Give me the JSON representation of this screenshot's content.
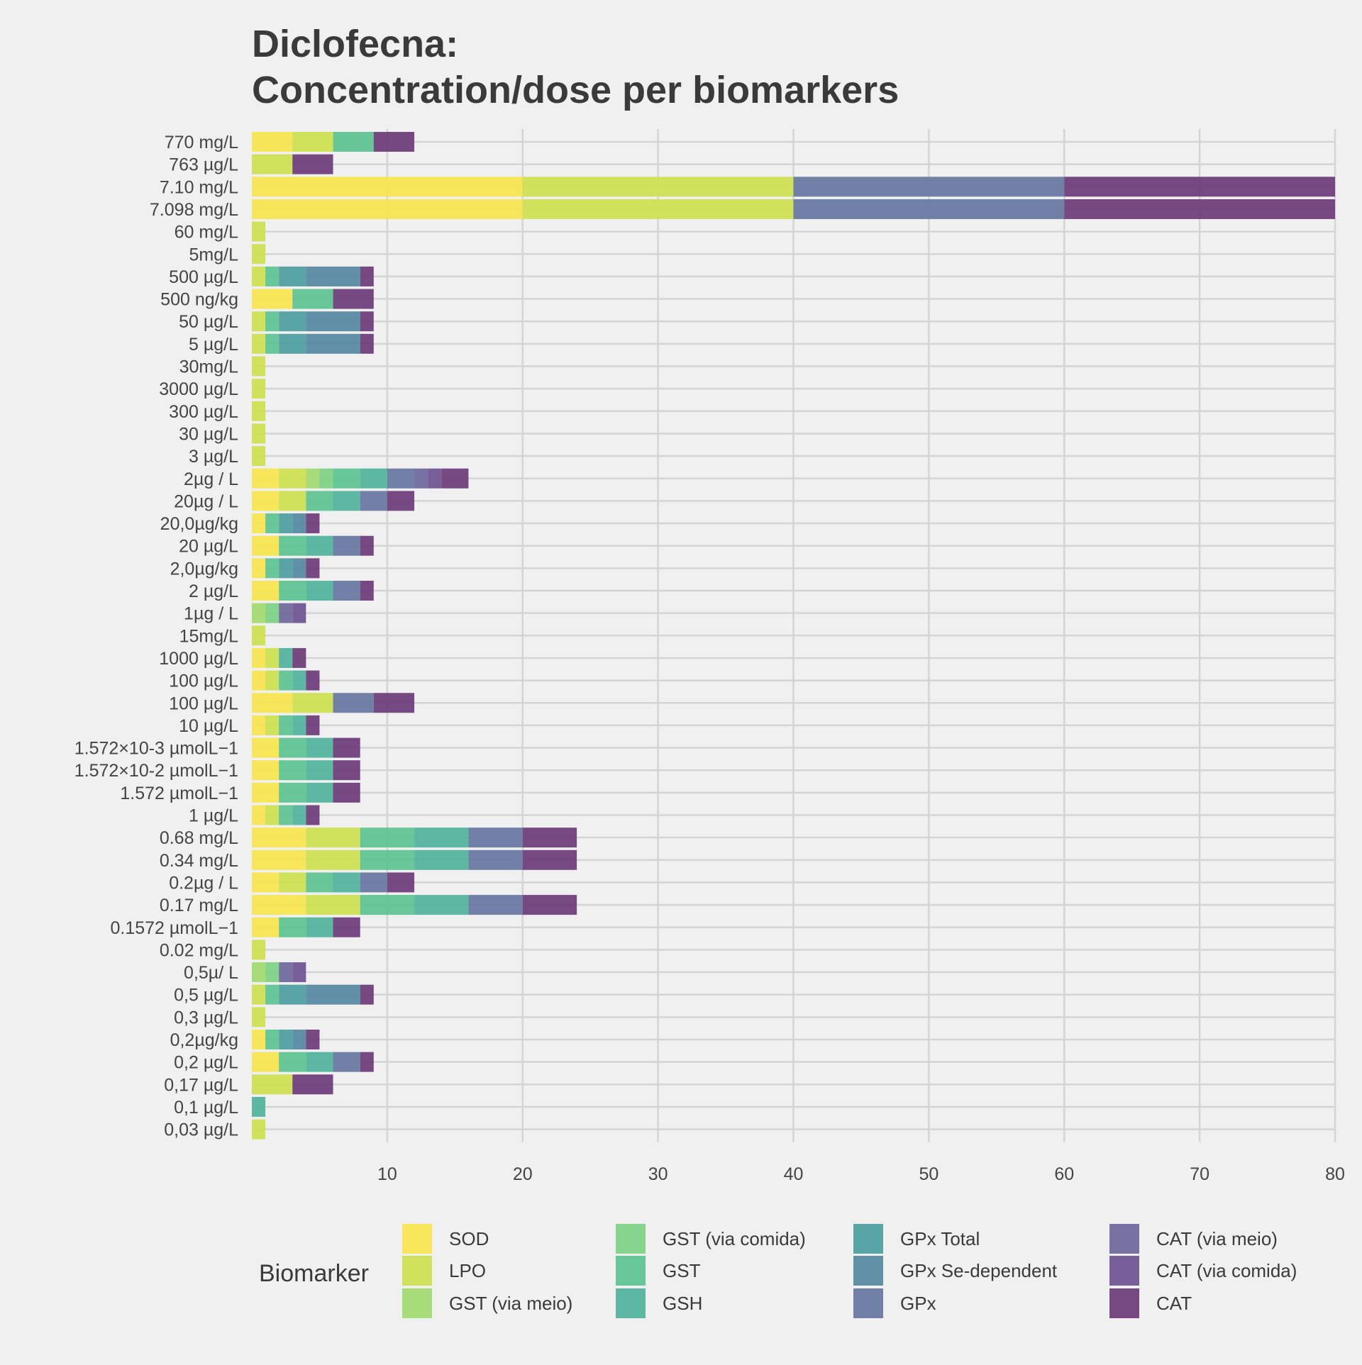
{
  "chart_data": {
    "type": "bar",
    "orientation": "horizontal",
    "stacked": true,
    "title": [
      "Diclofecna:",
      "Concentration/dose per biomarkers"
    ],
    "xlabel": "",
    "ylabel": "",
    "xlim": [
      0,
      80
    ],
    "xticks": [
      10,
      20,
      30,
      40,
      50,
      60,
      70,
      80
    ],
    "grid": true,
    "legend": {
      "title": "Biomarker",
      "position": "bottom"
    },
    "series": [
      {
        "name": "SOD",
        "color": "#f7e44d"
      },
      {
        "name": "LPO",
        "color": "#cddf4f"
      },
      {
        "name": "GST (via meio)",
        "color": "#a2da6e"
      },
      {
        "name": "GST (via comida)",
        "color": "#7dd083"
      },
      {
        "name": "GST",
        "color": "#5bc390"
      },
      {
        "name": "GSH",
        "color": "#4fb39c"
      },
      {
        "name": "GPx Total",
        "color": "#4c9e9f"
      },
      {
        "name": "GPx Se-dependent",
        "color": "#5388a0"
      },
      {
        "name": "GPx",
        "color": "#6676a1"
      },
      {
        "name": "CAT (via meio)",
        "color": "#6e679c"
      },
      {
        "name": "CAT (via comida)",
        "color": "#6f5292"
      },
      {
        "name": "CAT",
        "color": "#6d3b78"
      }
    ],
    "categories": [
      "770 mg/L",
      "763 µg/L",
      "7.10 mg/L",
      "7.098 mg/L",
      "60 mg/L",
      "5mg/L",
      "500 µg/L",
      "500 ng/kg",
      "50 µg/L",
      "5 µg/L",
      "30mg/L",
      "3000 µg/L",
      "300 µg/L",
      "30 µg/L",
      "3 µg/L",
      "2µg / L",
      "20µg / L",
      "20,0µg/kg",
      "20 µg/L",
      "2,0µg/kg",
      "2 µg/L",
      "1µg / L",
      "15mg/L",
      "1000 µg/L",
      "100 µg/L",
      "100 µg/L",
      "10 µg/L",
      "1.572×10-3 µmolL−1",
      "1.572×10-2 µmolL−1",
      "1.572 µmolL−1",
      "1 µg/L",
      "0.68 mg/L",
      "0.34 mg/L",
      "0.2µg / L",
      "0.17 mg/L",
      "0.1572 µmolL−1",
      "0.02 mg/L",
      "0,5µ/ L",
      "0,5 µg/L",
      "0,3 µg/L",
      "0,2µg/kg",
      "0,2 µg/L",
      "0,17 µg/L",
      "0,1 µg/L",
      "0,03 µg/L"
    ],
    "segments": [
      [
        [
          "SOD",
          3
        ],
        [
          "LPO",
          3
        ],
        [
          "GST",
          3
        ],
        [
          "CAT",
          3
        ]
      ],
      [
        [
          "LPO",
          3
        ],
        [
          "CAT",
          3
        ]
      ],
      [
        [
          "SOD",
          20
        ],
        [
          "LPO",
          20
        ],
        [
          "GPx",
          20
        ],
        [
          "CAT",
          20
        ]
      ],
      [
        [
          "SOD",
          20
        ],
        [
          "LPO",
          20
        ],
        [
          "GPx",
          20
        ],
        [
          "CAT",
          20
        ]
      ],
      [
        [
          "LPO",
          1
        ]
      ],
      [
        [
          "LPO",
          1
        ]
      ],
      [
        [
          "LPO",
          1
        ],
        [
          "GST",
          1
        ],
        [
          "GPx Total",
          2
        ],
        [
          "GPx Se-dependent",
          4
        ],
        [
          "CAT",
          1
        ]
      ],
      [
        [
          "SOD",
          3
        ],
        [
          "GST",
          3
        ],
        [
          "CAT",
          3
        ]
      ],
      [
        [
          "LPO",
          1
        ],
        [
          "GST",
          1
        ],
        [
          "GPx Total",
          2
        ],
        [
          "GPx Se-dependent",
          4
        ],
        [
          "CAT",
          1
        ]
      ],
      [
        [
          "LPO",
          1
        ],
        [
          "GST",
          1
        ],
        [
          "GPx Total",
          2
        ],
        [
          "GPx Se-dependent",
          4
        ],
        [
          "CAT",
          1
        ]
      ],
      [
        [
          "LPO",
          1
        ]
      ],
      [
        [
          "LPO",
          1
        ]
      ],
      [
        [
          "LPO",
          1
        ]
      ],
      [
        [
          "LPO",
          1
        ]
      ],
      [
        [
          "LPO",
          1
        ]
      ],
      [
        [
          "SOD",
          2
        ],
        [
          "LPO",
          2
        ],
        [
          "GST (via meio)",
          1
        ],
        [
          "GST (via comida)",
          1
        ],
        [
          "GST",
          2
        ],
        [
          "GSH",
          2
        ],
        [
          "GPx",
          2
        ],
        [
          "CAT (via meio)",
          1
        ],
        [
          "CAT (via comida)",
          1
        ],
        [
          "CAT",
          2
        ]
      ],
      [
        [
          "SOD",
          2
        ],
        [
          "LPO",
          2
        ],
        [
          "GST",
          2
        ],
        [
          "GSH",
          2
        ],
        [
          "GPx",
          2
        ],
        [
          "CAT",
          2
        ]
      ],
      [
        [
          "SOD",
          1
        ],
        [
          "GST",
          1
        ],
        [
          "GPx Total",
          1
        ],
        [
          "GPx Se-dependent",
          1
        ],
        [
          "CAT",
          1
        ]
      ],
      [
        [
          "SOD",
          2
        ],
        [
          "GST",
          2
        ],
        [
          "GSH",
          2
        ],
        [
          "GPx",
          2
        ],
        [
          "CAT",
          1
        ]
      ],
      [
        [
          "SOD",
          1
        ],
        [
          "GST",
          1
        ],
        [
          "GPx Total",
          1
        ],
        [
          "GPx Se-dependent",
          1
        ],
        [
          "CAT",
          1
        ]
      ],
      [
        [
          "SOD",
          2
        ],
        [
          "GST",
          2
        ],
        [
          "GSH",
          2
        ],
        [
          "GPx",
          2
        ],
        [
          "CAT",
          1
        ]
      ],
      [
        [
          "GST (via meio)",
          1
        ],
        [
          "GST (via comida)",
          1
        ],
        [
          "CAT (via meio)",
          1
        ],
        [
          "CAT (via comida)",
          1
        ]
      ],
      [
        [
          "LPO",
          1
        ]
      ],
      [
        [
          "SOD",
          1
        ],
        [
          "LPO",
          1
        ],
        [
          "GSH",
          1
        ],
        [
          "CAT",
          1
        ]
      ],
      [
        [
          "SOD",
          1
        ],
        [
          "LPO",
          1
        ],
        [
          "GST",
          1
        ],
        [
          "GSH",
          1
        ],
        [
          "CAT",
          1
        ]
      ],
      [
        [
          "SOD",
          3
        ],
        [
          "LPO",
          3
        ],
        [
          "GPx",
          3
        ],
        [
          "CAT",
          3
        ]
      ],
      [
        [
          "SOD",
          1
        ],
        [
          "LPO",
          1
        ],
        [
          "GST",
          1
        ],
        [
          "GSH",
          1
        ],
        [
          "CAT",
          1
        ]
      ],
      [
        [
          "SOD",
          2
        ],
        [
          "GST",
          2
        ],
        [
          "GSH",
          2
        ],
        [
          "CAT",
          2
        ]
      ],
      [
        [
          "SOD",
          2
        ],
        [
          "GST",
          2
        ],
        [
          "GSH",
          2
        ],
        [
          "CAT",
          2
        ]
      ],
      [
        [
          "SOD",
          2
        ],
        [
          "GST",
          2
        ],
        [
          "GSH",
          2
        ],
        [
          "CAT",
          2
        ]
      ],
      [
        [
          "SOD",
          1
        ],
        [
          "LPO",
          1
        ],
        [
          "GST",
          1
        ],
        [
          "GSH",
          1
        ],
        [
          "CAT",
          1
        ]
      ],
      [
        [
          "SOD",
          4
        ],
        [
          "LPO",
          4
        ],
        [
          "GST",
          4
        ],
        [
          "GSH",
          4
        ],
        [
          "GPx",
          4
        ],
        [
          "CAT",
          4
        ]
      ],
      [
        [
          "SOD",
          4
        ],
        [
          "LPO",
          4
        ],
        [
          "GST",
          4
        ],
        [
          "GSH",
          4
        ],
        [
          "GPx",
          4
        ],
        [
          "CAT",
          4
        ]
      ],
      [
        [
          "SOD",
          2
        ],
        [
          "LPO",
          2
        ],
        [
          "GST",
          2
        ],
        [
          "GSH",
          2
        ],
        [
          "GPx",
          2
        ],
        [
          "CAT",
          2
        ]
      ],
      [
        [
          "SOD",
          4
        ],
        [
          "LPO",
          4
        ],
        [
          "GST",
          4
        ],
        [
          "GSH",
          4
        ],
        [
          "GPx",
          4
        ],
        [
          "CAT",
          4
        ]
      ],
      [
        [
          "SOD",
          2
        ],
        [
          "GST",
          2
        ],
        [
          "GSH",
          2
        ],
        [
          "CAT",
          2
        ]
      ],
      [
        [
          "LPO",
          1
        ]
      ],
      [
        [
          "GST (via meio)",
          1
        ],
        [
          "GST (via comida)",
          1
        ],
        [
          "CAT (via meio)",
          1
        ],
        [
          "CAT (via comida)",
          1
        ]
      ],
      [
        [
          "LPO",
          1
        ],
        [
          "GST",
          1
        ],
        [
          "GPx Total",
          2
        ],
        [
          "GPx Se-dependent",
          4
        ],
        [
          "CAT",
          1
        ]
      ],
      [
        [
          "LPO",
          1
        ]
      ],
      [
        [
          "SOD",
          1
        ],
        [
          "GST",
          1
        ],
        [
          "GPx Total",
          1
        ],
        [
          "GPx Se-dependent",
          1
        ],
        [
          "CAT",
          1
        ]
      ],
      [
        [
          "SOD",
          2
        ],
        [
          "GST",
          2
        ],
        [
          "GSH",
          2
        ],
        [
          "GPx",
          2
        ],
        [
          "CAT",
          1
        ]
      ],
      [
        [
          "LPO",
          3
        ],
        [
          "CAT",
          3
        ]
      ],
      [
        [
          "GSH",
          1
        ]
      ],
      [
        [
          "LPO",
          1
        ]
      ]
    ]
  }
}
